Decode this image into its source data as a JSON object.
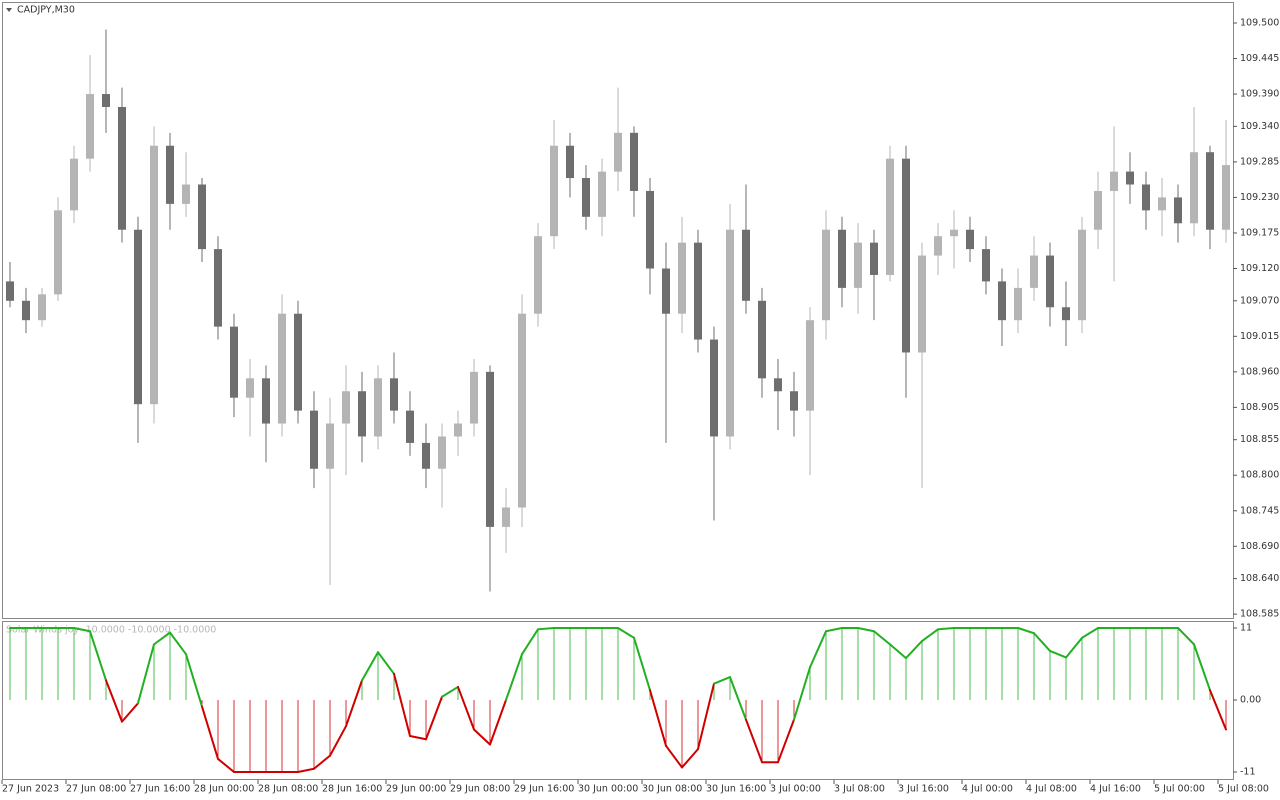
{
  "chart_data": [
    {
      "type": "candlestick",
      "title": "CADJPY,M30",
      "up_color": "#b4b4b4",
      "down_color": "#6e6e6e",
      "candles": [
        [
          109.1,
          109.13,
          109.06,
          109.07
        ],
        [
          109.07,
          109.09,
          109.02,
          109.04
        ],
        [
          109.04,
          109.09,
          109.03,
          109.08
        ],
        [
          109.08,
          109.23,
          109.07,
          109.21
        ],
        [
          109.21,
          109.31,
          109.19,
          109.29
        ],
        [
          109.29,
          109.45,
          109.27,
          109.39
        ],
        [
          109.39,
          109.49,
          109.33,
          109.37
        ],
        [
          109.37,
          109.4,
          109.16,
          109.18
        ],
        [
          109.18,
          109.2,
          108.85,
          108.91
        ],
        [
          108.91,
          109.34,
          108.88,
          109.31
        ],
        [
          109.31,
          109.33,
          109.18,
          109.22
        ],
        [
          109.22,
          109.3,
          109.2,
          109.25
        ],
        [
          109.25,
          109.26,
          109.13,
          109.15
        ],
        [
          109.15,
          109.17,
          109.01,
          109.03
        ],
        [
          109.03,
          109.05,
          108.89,
          108.92
        ],
        [
          108.92,
          108.98,
          108.86,
          108.95
        ],
        [
          108.95,
          108.97,
          108.82,
          108.88
        ],
        [
          108.88,
          109.08,
          108.86,
          109.05
        ],
        [
          109.05,
          109.07,
          108.88,
          108.9
        ],
        [
          108.9,
          108.93,
          108.78,
          108.81
        ],
        [
          108.81,
          108.92,
          108.63,
          108.88
        ],
        [
          108.88,
          108.97,
          108.8,
          108.93
        ],
        [
          108.93,
          108.96,
          108.82,
          108.86
        ],
        [
          108.86,
          108.97,
          108.84,
          108.95
        ],
        [
          108.95,
          108.99,
          108.88,
          108.9
        ],
        [
          108.9,
          108.93,
          108.83,
          108.85
        ],
        [
          108.85,
          108.88,
          108.78,
          108.81
        ],
        [
          108.81,
          108.88,
          108.75,
          108.86
        ],
        [
          108.86,
          108.9,
          108.83,
          108.88
        ],
        [
          108.88,
          108.98,
          108.86,
          108.96
        ],
        [
          108.96,
          108.97,
          108.62,
          108.72
        ],
        [
          108.72,
          108.78,
          108.68,
          108.75
        ],
        [
          108.75,
          109.08,
          108.72,
          109.05
        ],
        [
          109.05,
          109.19,
          109.03,
          109.17
        ],
        [
          109.17,
          109.35,
          109.15,
          109.31
        ],
        [
          109.31,
          109.33,
          109.23,
          109.26
        ],
        [
          109.26,
          109.28,
          109.18,
          109.2
        ],
        [
          109.2,
          109.29,
          109.17,
          109.27
        ],
        [
          109.27,
          109.4,
          109.24,
          109.33
        ],
        [
          109.33,
          109.34,
          109.2,
          109.24
        ],
        [
          109.24,
          109.26,
          109.08,
          109.12
        ],
        [
          109.12,
          109.16,
          108.85,
          109.05
        ],
        [
          109.05,
          109.2,
          109.02,
          109.16
        ],
        [
          109.16,
          109.18,
          108.99,
          109.01
        ],
        [
          109.01,
          109.03,
          108.73,
          108.86
        ],
        [
          108.86,
          109.22,
          108.84,
          109.18
        ],
        [
          109.18,
          109.25,
          109.05,
          109.07
        ],
        [
          109.07,
          109.09,
          108.92,
          108.95
        ],
        [
          108.95,
          108.98,
          108.87,
          108.93
        ],
        [
          108.93,
          108.96,
          108.86,
          108.9
        ],
        [
          108.9,
          109.06,
          108.8,
          109.04
        ],
        [
          109.04,
          109.21,
          109.01,
          109.18
        ],
        [
          109.18,
          109.2,
          109.06,
          109.09
        ],
        [
          109.09,
          109.19,
          109.05,
          109.16
        ],
        [
          109.16,
          109.18,
          109.04,
          109.11
        ],
        [
          109.11,
          109.31,
          109.1,
          109.29
        ],
        [
          109.29,
          109.31,
          108.92,
          108.99
        ],
        [
          108.99,
          109.16,
          108.78,
          109.14
        ],
        [
          109.14,
          109.19,
          109.11,
          109.17
        ],
        [
          109.17,
          109.21,
          109.12,
          109.18
        ],
        [
          109.18,
          109.2,
          109.13,
          109.15
        ],
        [
          109.15,
          109.17,
          109.08,
          109.1
        ],
        [
          109.1,
          109.12,
          109.0,
          109.04
        ],
        [
          109.04,
          109.12,
          109.02,
          109.09
        ],
        [
          109.09,
          109.17,
          109.07,
          109.14
        ],
        [
          109.14,
          109.16,
          109.03,
          109.06
        ],
        [
          109.06,
          109.1,
          109.0,
          109.04
        ],
        [
          109.04,
          109.2,
          109.02,
          109.18
        ],
        [
          109.18,
          109.27,
          109.15,
          109.24
        ],
        [
          109.24,
          109.34,
          109.1,
          109.27
        ],
        [
          109.27,
          109.3,
          109.22,
          109.25
        ],
        [
          109.25,
          109.27,
          109.18,
          109.21
        ],
        [
          109.21,
          109.26,
          109.17,
          109.23
        ],
        [
          109.23,
          109.25,
          109.16,
          109.19
        ],
        [
          109.19,
          109.37,
          109.17,
          109.3
        ],
        [
          109.3,
          109.31,
          109.15,
          109.18
        ],
        [
          109.18,
          109.35,
          109.16,
          109.28
        ]
      ],
      "ylim": [
        108.579,
        109.5325
      ],
      "yticks": [
        {
          "value": 109.5,
          "label": "109.500"
        },
        109.445,
        {
          "value": 109.39,
          "label": "109.390"
        },
        {
          "value": 109.34,
          "label": "109.340"
        },
        109.285,
        {
          "value": 109.23,
          "label": "109.230"
        },
        109.175,
        {
          "value": 109.12,
          "label": "109.120"
        },
        {
          "value": 109.07,
          "label": "109.070"
        },
        109.015,
        {
          "value": 108.96,
          "label": "108.960"
        },
        108.905,
        108.855,
        {
          "value": 108.8,
          "label": "108.800"
        },
        108.745,
        {
          "value": 108.69,
          "label": "108.690"
        },
        {
          "value": 108.64,
          "label": "108.640"
        },
        108.585
      ],
      "xticks": [
        {
          "value": 0,
          "label": "27 Jun 2023"
        },
        {
          "value": 4,
          "label": "27 Jun 08:00"
        },
        {
          "value": 8,
          "label": "27 Jun 16:00"
        },
        {
          "value": 12,
          "label": "28 Jun 00:00"
        },
        {
          "value": 16,
          "label": "28 Jun 08:00"
        },
        {
          "value": 20,
          "label": "28 Jun 16:00"
        },
        {
          "value": 24,
          "label": "29 Jun 00:00"
        },
        {
          "value": 28,
          "label": "29 Jun 08:00"
        },
        {
          "value": 32,
          "label": "29 Jun 16:00"
        },
        {
          "value": 36,
          "label": "30 Jun 00:00"
        },
        {
          "value": 40,
          "label": "30 Jun 08:00"
        },
        {
          "value": 44,
          "label": "30 Jun 16:00"
        },
        {
          "value": 48,
          "label": "3 Jul 00:00"
        },
        {
          "value": 52,
          "label": "3 Jul 08:00"
        },
        {
          "value": 56,
          "label": "3 Jul 16:00"
        },
        {
          "value": 60,
          "label": "4 Jul 00:00"
        },
        {
          "value": 64,
          "label": "4 Jul 08:00"
        },
        {
          "value": 68,
          "label": "4 Jul 16:00"
        },
        {
          "value": 72,
          "label": "5 Jul 00:00"
        },
        {
          "value": 76,
          "label": "5 Jul 08:00"
        }
      ]
    },
    {
      "type": "oscillator",
      "title": "Solar Winds joy -10.0000 -10.0000 -10.0000",
      "up_color": "#22b022",
      "down_color": "#d00000",
      "values": [
        11,
        11,
        11,
        11,
        11,
        10.5,
        3,
        -3.3,
        -0.5,
        8.5,
        10.3,
        7,
        -1,
        -9,
        -11,
        -11,
        -11,
        -11,
        -11,
        -10.5,
        -8.5,
        -4,
        3,
        7.3,
        4,
        -5.5,
        -6,
        0.5,
        2,
        -4.5,
        -6.8,
        0,
        7,
        10.8,
        11,
        11,
        11,
        11,
        11,
        9.5,
        1.5,
        -7,
        -10.3,
        -7.5,
        2.5,
        3.5,
        -3,
        -9.5,
        -9.5,
        -3,
        5,
        10.5,
        11,
        11,
        10.5,
        8.5,
        6.4,
        9,
        10.8,
        11,
        11,
        11,
        11,
        11,
        10.2,
        7.5,
        6.5,
        9.5,
        11,
        11,
        11,
        11,
        11,
        11,
        8.5,
        1.5,
        -4.5
      ],
      "ylim": [
        -12.22,
        12.07
      ],
      "yticks": [
        11,
        {
          "value": 0,
          "label": "0.00"
        },
        -11
      ]
    }
  ]
}
